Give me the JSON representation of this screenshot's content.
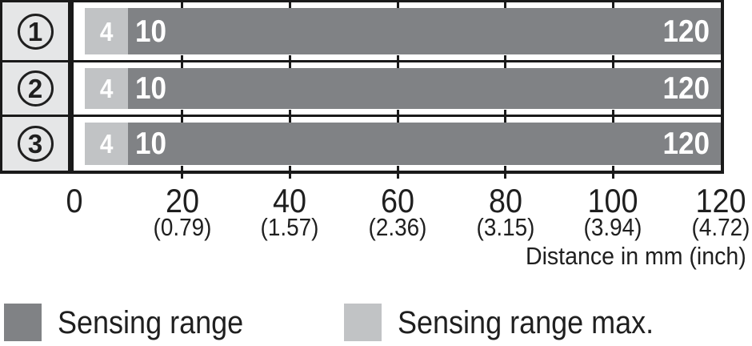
{
  "colors": {
    "sensing_range": "#808285",
    "sensing_range_max": "#c1c3c5",
    "header_bg": "#e5e6e7",
    "border": "#1a1a1a",
    "text": "#1f1f1f",
    "bar_label": "#ffffff",
    "background": "#ffffff"
  },
  "chart_data": {
    "type": "bar",
    "orientation": "horizontal",
    "xlabel": "Distance in mm (inch)",
    "x_range_mm": [
      0,
      120
    ],
    "grid_on": true,
    "grid_tick_mm": [
      20,
      40,
      60,
      80,
      100
    ],
    "rows": [
      {
        "marker": "1",
        "segments": [
          {
            "key": "sensing_range_max",
            "series": "Sensing range max.",
            "start_mm": 2,
            "end_mm": 10,
            "labels": [
              {
                "text": "4",
                "align": "center"
              }
            ]
          },
          {
            "key": "sensing_range",
            "series": "Sensing range",
            "start_mm": 10,
            "end_mm": 120,
            "labels": [
              {
                "text": "10",
                "align": "start"
              },
              {
                "text": "120",
                "align": "end"
              }
            ]
          }
        ]
      },
      {
        "marker": "2",
        "segments": [
          {
            "key": "sensing_range_max",
            "series": "Sensing range max.",
            "start_mm": 2,
            "end_mm": 10,
            "labels": [
              {
                "text": "4",
                "align": "center"
              }
            ]
          },
          {
            "key": "sensing_range",
            "series": "Sensing range",
            "start_mm": 10,
            "end_mm": 120,
            "labels": [
              {
                "text": "10",
                "align": "start"
              },
              {
                "text": "120",
                "align": "end"
              }
            ]
          }
        ]
      },
      {
        "marker": "3",
        "segments": [
          {
            "key": "sensing_range_max",
            "series": "Sensing range max.",
            "start_mm": 2,
            "end_mm": 10,
            "labels": [
              {
                "text": "4",
                "align": "center"
              }
            ]
          },
          {
            "key": "sensing_range",
            "series": "Sensing range",
            "start_mm": 10,
            "end_mm": 120,
            "labels": [
              {
                "text": "10",
                "align": "start"
              },
              {
                "text": "120",
                "align": "end"
              }
            ]
          }
        ]
      }
    ],
    "x_ticks": [
      {
        "mm": 0,
        "mm_label": "0",
        "inch_label": ""
      },
      {
        "mm": 20,
        "mm_label": "20",
        "inch_label": "(0.79)"
      },
      {
        "mm": 40,
        "mm_label": "40",
        "inch_label": "(1.57)"
      },
      {
        "mm": 60,
        "mm_label": "60",
        "inch_label": "(2.36)"
      },
      {
        "mm": 80,
        "mm_label": "80",
        "inch_label": "(3.15)"
      },
      {
        "mm": 100,
        "mm_label": "100",
        "inch_label": "(3.94)"
      },
      {
        "mm": 120,
        "mm_label": "120",
        "inch_label": "(4.72)"
      }
    ],
    "legend": [
      {
        "label": "Sensing range",
        "color": "#808285"
      },
      {
        "label": "Sensing range max.",
        "color": "#c1c3c5"
      }
    ]
  }
}
